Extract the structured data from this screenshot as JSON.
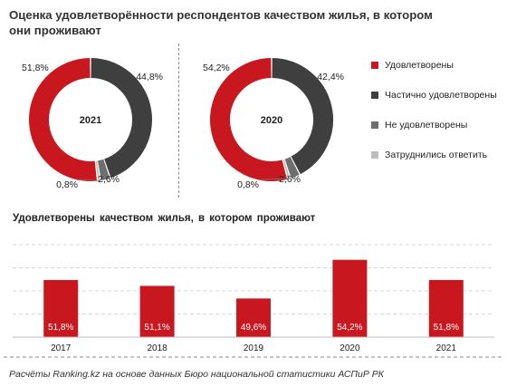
{
  "title": "Оценка удовлетворённости респондентов качеством жилья, в котором они проживают",
  "colors": {
    "satisfied": "#c8171e",
    "partial": "#3f3f3f",
    "not_satisfied": "#6e6e6e",
    "undecided": "#bdbdbd"
  },
  "chart_data": [
    {
      "type": "pie",
      "variant": "donut",
      "center_label": "2021",
      "categories": [
        "Удовлетворены",
        "Частично удовлетворены",
        "Не удовлетворены",
        "Затруднились ответить"
      ],
      "values": [
        51.8,
        44.8,
        2.6,
        0.8
      ],
      "data_labels": [
        "51,8%",
        "44,8%",
        "2,6%",
        "0,8%"
      ]
    },
    {
      "type": "pie",
      "variant": "donut",
      "center_label": "2020",
      "categories": [
        "Удовлетворены",
        "Частично удовлетворены",
        "Не удовлетворены",
        "Затруднились ответить"
      ],
      "values": [
        54.2,
        42.4,
        2.6,
        0.8
      ],
      "data_labels": [
        "54,2%",
        "42,4%",
        "2,6%",
        "0,8%"
      ]
    },
    {
      "type": "bar",
      "title": "Удовлетворены качеством жилья, в котором проживают",
      "categories": [
        "2017",
        "2018",
        "2019",
        "2020",
        "2021"
      ],
      "values": [
        51.8,
        51.1,
        49.6,
        54.2,
        51.8
      ],
      "data_labels": [
        "51,8%",
        "51,1%",
        "49,6%",
        "54,2%",
        "51,8%"
      ],
      "ylim": [
        45,
        56
      ],
      "grid": true
    }
  ],
  "legend": [
    {
      "label": "Удовлетворены",
      "color": "#c8171e"
    },
    {
      "label": "Частично удовлетворены",
      "color": "#3f3f3f"
    },
    {
      "label": "Не удовлетворены",
      "color": "#6e6e6e"
    },
    {
      "label": "Затруднились ответить",
      "color": "#bdbdbd"
    }
  ],
  "source": "Расчёты Ranking.kz на основе данных Бюро национальной статистики АСПиР РК"
}
